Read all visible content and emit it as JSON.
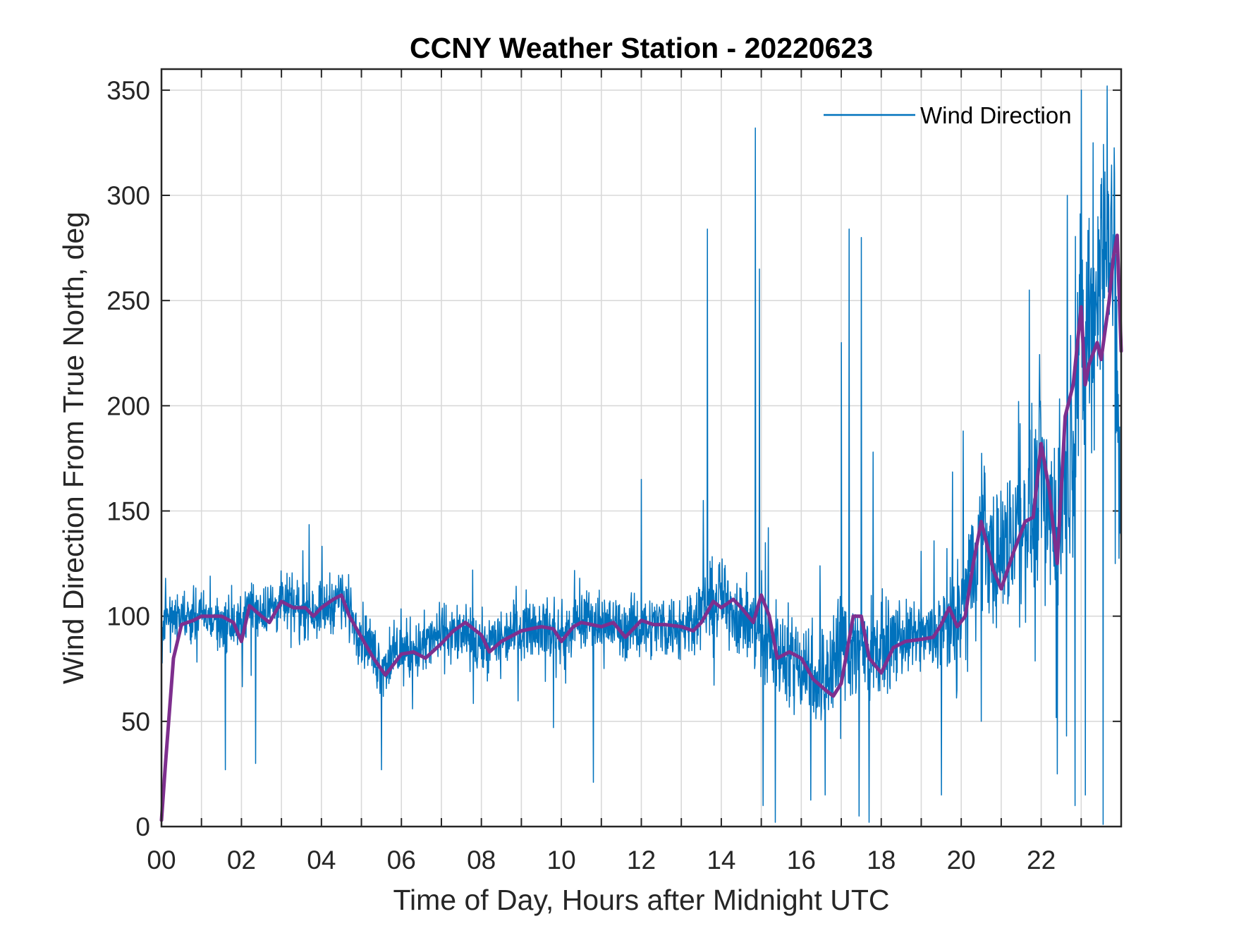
{
  "chart_data": {
    "type": "line",
    "title": "CCNY Weather Station - 20220623",
    "xlabel": "Time of Day, Hours after Midnight UTC",
    "ylabel": "Wind Direction From True North, deg",
    "xlim": [
      0,
      24
    ],
    "ylim": [
      0,
      360
    ],
    "grid": true,
    "x_tick_values": [
      0,
      2,
      4,
      6,
      8,
      10,
      12,
      14,
      16,
      18,
      20,
      22
    ],
    "x_tick_labels": [
      "00",
      "02",
      "04",
      "06",
      "08",
      "10",
      "12",
      "14",
      "16",
      "18",
      "20",
      "22"
    ],
    "x_minor_grid_step": 1,
    "y_tick_values": [
      0,
      50,
      100,
      150,
      200,
      250,
      300,
      350
    ],
    "y_tick_labels": [
      "0",
      "50",
      "100",
      "150",
      "200",
      "250",
      "300",
      "350"
    ],
    "legend": {
      "position": "top-right",
      "entries": [
        "Wind Direction"
      ]
    },
    "colors": {
      "raw": "#0072BD",
      "smoothed": "#7E2F8E",
      "axis": "#262626",
      "grid": "#d9d9d9"
    },
    "series": [
      {
        "name": "Wind Direction",
        "style": "raw-noisy",
        "baseline": {
          "x": [
            0,
            0.05,
            0.3,
            0.5,
            1.0,
            1.5,
            1.9,
            2.2,
            2.6,
            3.0,
            3.5,
            4.0,
            4.5,
            5.0,
            5.5,
            6.0,
            6.5,
            7.0,
            7.5,
            8.0,
            8.5,
            9.0,
            9.5,
            10.0,
            10.5,
            11.0,
            11.5,
            12.0,
            12.5,
            13.0,
            13.5,
            14.0,
            14.5,
            15.0,
            15.5,
            16.0,
            16.5,
            17.0,
            17.5,
            18.0,
            18.5,
            19.0,
            19.5,
            19.8,
            20.0,
            20.3,
            20.5,
            20.8,
            21.0,
            21.5,
            21.8,
            22.0,
            22.2,
            22.4,
            22.7,
            23.0,
            23.3,
            23.6,
            23.8,
            24.0
          ],
          "y": [
            80,
            95,
            98,
            100,
            100,
            97,
            94,
            104,
            103,
            106,
            104,
            103,
            110,
            92,
            76,
            83,
            85,
            92,
            91,
            85,
            90,
            95,
            96,
            89,
            98,
            97,
            94,
            95,
            96,
            94,
            104,
            108,
            100,
            90,
            83,
            78,
            70,
            85,
            85,
            85,
            89,
            90,
            92,
            97,
            100,
            125,
            145,
            128,
            130,
            145,
            150,
            175,
            150,
            145,
            175,
            235,
            240,
            290,
            270,
            135
          ]
        },
        "noise_amplitude": {
          "x": [
            0,
            5,
            12,
            15,
            17,
            19,
            20,
            22,
            24
          ],
          "y": [
            12,
            15,
            15,
            22,
            30,
            15,
            28,
            45,
            70
          ]
        },
        "spikes": [
          {
            "x": 0.1,
            "y": 118
          },
          {
            "x": 1.6,
            "y": 27
          },
          {
            "x": 2.35,
            "y": 30
          },
          {
            "x": 5.5,
            "y": 27
          },
          {
            "x": 9.8,
            "y": 47
          },
          {
            "x": 10.8,
            "y": 21
          },
          {
            "x": 12.0,
            "y": 165
          },
          {
            "x": 13.55,
            "y": 155
          },
          {
            "x": 13.65,
            "y": 284
          },
          {
            "x": 14.85,
            "y": 332
          },
          {
            "x": 14.95,
            "y": 265
          },
          {
            "x": 15.05,
            "y": 10
          },
          {
            "x": 15.35,
            "y": 2
          },
          {
            "x": 16.6,
            "y": 15
          },
          {
            "x": 17.0,
            "y": 230
          },
          {
            "x": 17.2,
            "y": 284
          },
          {
            "x": 17.45,
            "y": 5
          },
          {
            "x": 17.5,
            "y": 280
          },
          {
            "x": 17.7,
            "y": 2
          },
          {
            "x": 17.8,
            "y": 178
          },
          {
            "x": 19.5,
            "y": 15
          },
          {
            "x": 20.05,
            "y": 188
          },
          {
            "x": 20.5,
            "y": 50
          },
          {
            "x": 21.7,
            "y": 255
          },
          {
            "x": 22.1,
            "y": 105
          },
          {
            "x": 22.4,
            "y": 25
          },
          {
            "x": 22.65,
            "y": 300
          },
          {
            "x": 22.85,
            "y": 10
          },
          {
            "x": 23.0,
            "y": 350
          },
          {
            "x": 23.1,
            "y": 15
          },
          {
            "x": 23.3,
            "y": 325
          },
          {
            "x": 23.55,
            "y": 1
          },
          {
            "x": 23.85,
            "y": 125
          }
        ]
      },
      {
        "name": "Smoothed (unlabeled)",
        "style": "smoothed",
        "x": [
          0,
          0.1,
          0.3,
          0.5,
          0.8,
          1.0,
          1.5,
          1.8,
          2.0,
          2.2,
          2.5,
          2.7,
          3.0,
          3.3,
          3.6,
          3.8,
          4.0,
          4.3,
          4.5,
          4.7,
          5.0,
          5.3,
          5.6,
          6.0,
          6.3,
          6.6,
          7.0,
          7.3,
          7.6,
          8.0,
          8.2,
          8.5,
          9.0,
          9.5,
          9.8,
          10.0,
          10.3,
          10.5,
          11.0,
          11.3,
          11.6,
          12.0,
          12.3,
          12.6,
          13.0,
          13.3,
          13.5,
          13.8,
          14.0,
          14.3,
          14.5,
          14.8,
          15.0,
          15.2,
          15.4,
          15.7,
          16.0,
          16.3,
          16.6,
          16.8,
          17.0,
          17.3,
          17.5,
          17.7,
          18.0,
          18.3,
          18.6,
          19.0,
          19.3,
          19.5,
          19.7,
          19.9,
          20.1,
          20.3,
          20.5,
          20.8,
          21.0,
          21.3,
          21.6,
          21.8,
          22.0,
          22.2,
          22.4,
          22.6,
          22.8,
          23.0,
          23.1,
          23.2,
          23.4,
          23.5,
          23.7,
          23.8,
          23.9,
          24.0
        ],
        "y": [
          3,
          30,
          80,
          96,
          98,
          100,
          100,
          97,
          88,
          105,
          100,
          97,
          107,
          104,
          104,
          100,
          104,
          108,
          110,
          100,
          90,
          80,
          72,
          82,
          83,
          80,
          87,
          93,
          97,
          91,
          83,
          88,
          93,
          95,
          94,
          88,
          95,
          97,
          95,
          97,
          90,
          98,
          96,
          96,
          95,
          93,
          97,
          107,
          104,
          108,
          104,
          97,
          110,
          100,
          80,
          83,
          80,
          70,
          65,
          62,
          68,
          100,
          100,
          80,
          73,
          85,
          88,
          89,
          90,
          96,
          104,
          95,
          100,
          125,
          145,
          122,
          113,
          130,
          145,
          147,
          182,
          160,
          125,
          195,
          210,
          247,
          210,
          220,
          230,
          222,
          250,
          270,
          281,
          226
        ]
      }
    ]
  }
}
